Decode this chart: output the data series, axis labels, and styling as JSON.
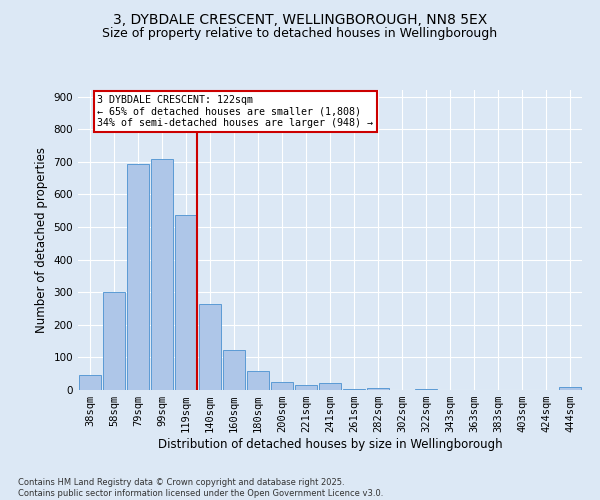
{
  "title": "3, DYBDALE CRESCENT, WELLINGBOROUGH, NN8 5EX",
  "subtitle": "Size of property relative to detached houses in Wellingborough",
  "xlabel": "Distribution of detached houses by size in Wellingborough",
  "ylabel": "Number of detached properties",
  "bar_labels": [
    "38sqm",
    "58sqm",
    "79sqm",
    "99sqm",
    "119sqm",
    "140sqm",
    "160sqm",
    "180sqm",
    "200sqm",
    "221sqm",
    "241sqm",
    "261sqm",
    "282sqm",
    "302sqm",
    "322sqm",
    "343sqm",
    "363sqm",
    "383sqm",
    "403sqm",
    "424sqm",
    "444sqm"
  ],
  "bar_values": [
    45,
    300,
    693,
    707,
    537,
    265,
    123,
    57,
    26,
    16,
    20,
    3,
    5,
    0,
    4,
    0,
    1,
    0,
    0,
    0,
    8
  ],
  "bar_color": "#aec6e8",
  "bar_edgecolor": "#5b9bd5",
  "bg_color": "#dce8f5",
  "grid_color": "#ffffff",
  "vline_color": "#cc0000",
  "annotation_text": "3 DYBDALE CRESCENT: 122sqm\n← 65% of detached houses are smaller (1,808)\n34% of semi-detached houses are larger (948) →",
  "annotation_box_color": "#cc0000",
  "ylim": [
    0,
    920
  ],
  "yticks": [
    0,
    100,
    200,
    300,
    400,
    500,
    600,
    700,
    800,
    900
  ],
  "footer_text": "Contains HM Land Registry data © Crown copyright and database right 2025.\nContains public sector information licensed under the Open Government Licence v3.0.",
  "title_fontsize": 10,
  "subtitle_fontsize": 9,
  "axis_fontsize": 8.5,
  "tick_fontsize": 7.5,
  "footer_fontsize": 6
}
